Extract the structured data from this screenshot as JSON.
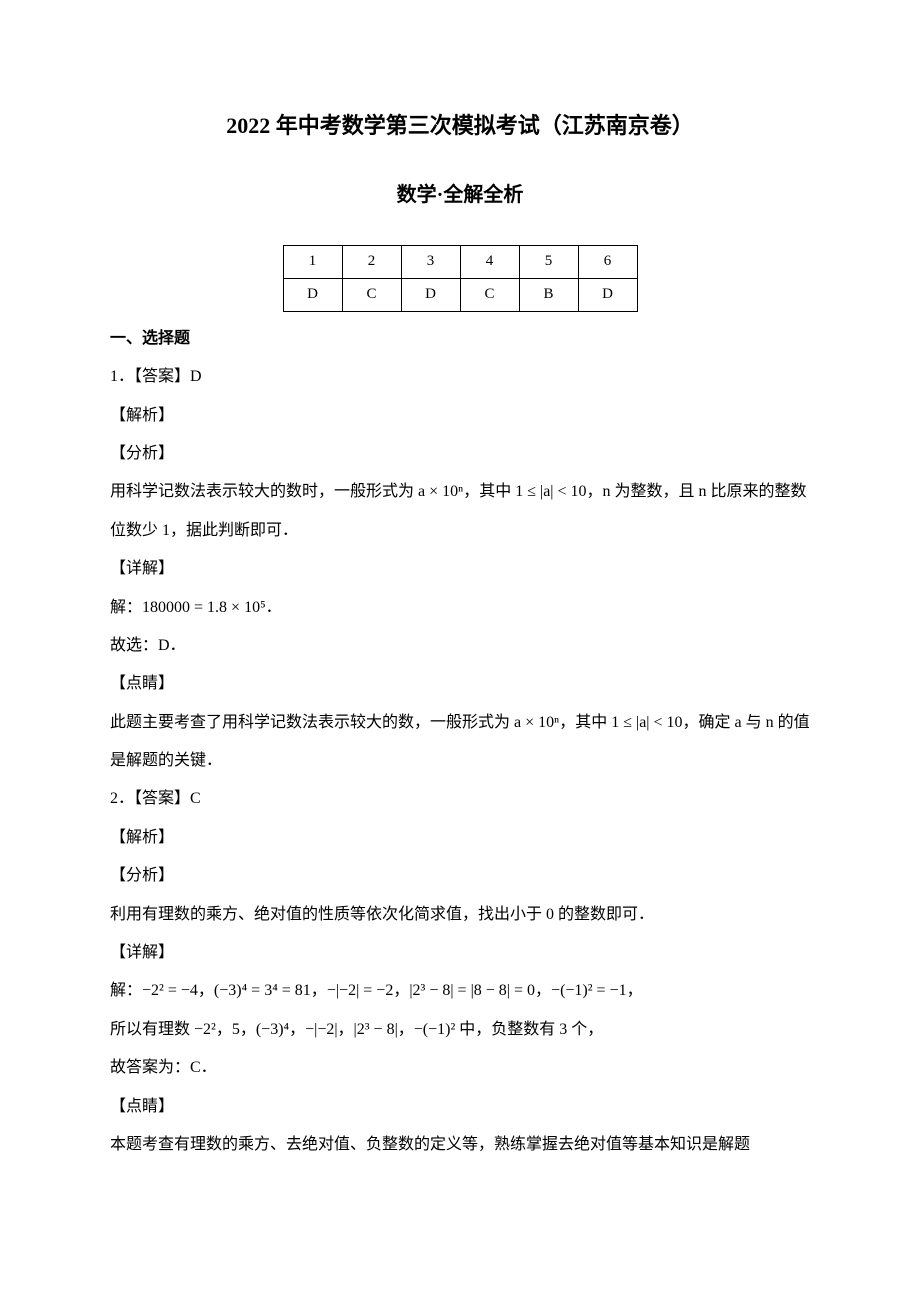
{
  "title": "2022 年中考数学第三次模拟考试（江苏南京卷）",
  "subtitle": "数学·全解全析",
  "answers_table": {
    "columns": [
      "1",
      "2",
      "3",
      "4",
      "5",
      "6"
    ],
    "values": [
      "D",
      "C",
      "D",
      "C",
      "B",
      "D"
    ]
  },
  "section1_header": "一、选择题",
  "q1": {
    "head": "1．【答案】D",
    "jiexi": "【解析】",
    "fenxi": "【分析】",
    "fenxi_text_a": "用科学记数法表示较大的数时，一般形式为 ",
    "fenxi_text_a_expr": "a × 10ⁿ",
    "fenxi_text_b": "，其中 ",
    "fenxi_text_b_expr": "1 ≤ |a| < 10",
    "fenxi_text_c": "，n 为整数，且 n 比原来的整数位数少 1，据此判断即可．",
    "xiangjie": "【详解】",
    "xiangjie_text_a": "解：",
    "xiangjie_text_a_expr": "180000 = 1.8 × 10⁵",
    "xiangjie_text_b": "．",
    "guxuan": "故选：D．",
    "dianjing": "【点睛】",
    "dianjing_text_a": "此题主要考查了用科学记数法表示较大的数，一般形式为 ",
    "dianjing_text_a_expr": "a × 10ⁿ",
    "dianjing_text_b": "，其中 ",
    "dianjing_text_b_expr": "1 ≤ |a| < 10",
    "dianjing_text_c": "，确定 a 与 n 的值是解题的关键．"
  },
  "q2": {
    "head": "2．【答案】C",
    "jiexi": "【解析】",
    "fenxi": "【分析】",
    "fenxi_text": "利用有理数的乘方、绝对值的性质等依次化简求值，找出小于 0 的整数即可．",
    "xiangjie": "【详解】",
    "xiangjie_text_a": "解：",
    "xiangjie_expr1": "−2² = −4",
    "xiangjie_sep": "，",
    "xiangjie_expr2": "(−3)⁴ = 3⁴ = 81",
    "xiangjie_expr3": "−|−2| = −2",
    "xiangjie_expr4": "|2³ − 8| = |8 − 8| = 0",
    "xiangjie_expr5": "−(−1)² = −1",
    "xiangjie_text_b": "所以有理数 ",
    "xiangjie_list": "−2²，5，(−3)⁴，−|−2|，|2³ − 8|，−(−1)²",
    "xiangjie_text_c": " 中，负整数有 3 个，",
    "gudaan": "故答案为：C．",
    "dianjing": "【点睛】",
    "dianjing_text": "本题考查有理数的乘方、去绝对值、负整数的定义等，熟练掌握去绝对值等基本知识是解题"
  }
}
